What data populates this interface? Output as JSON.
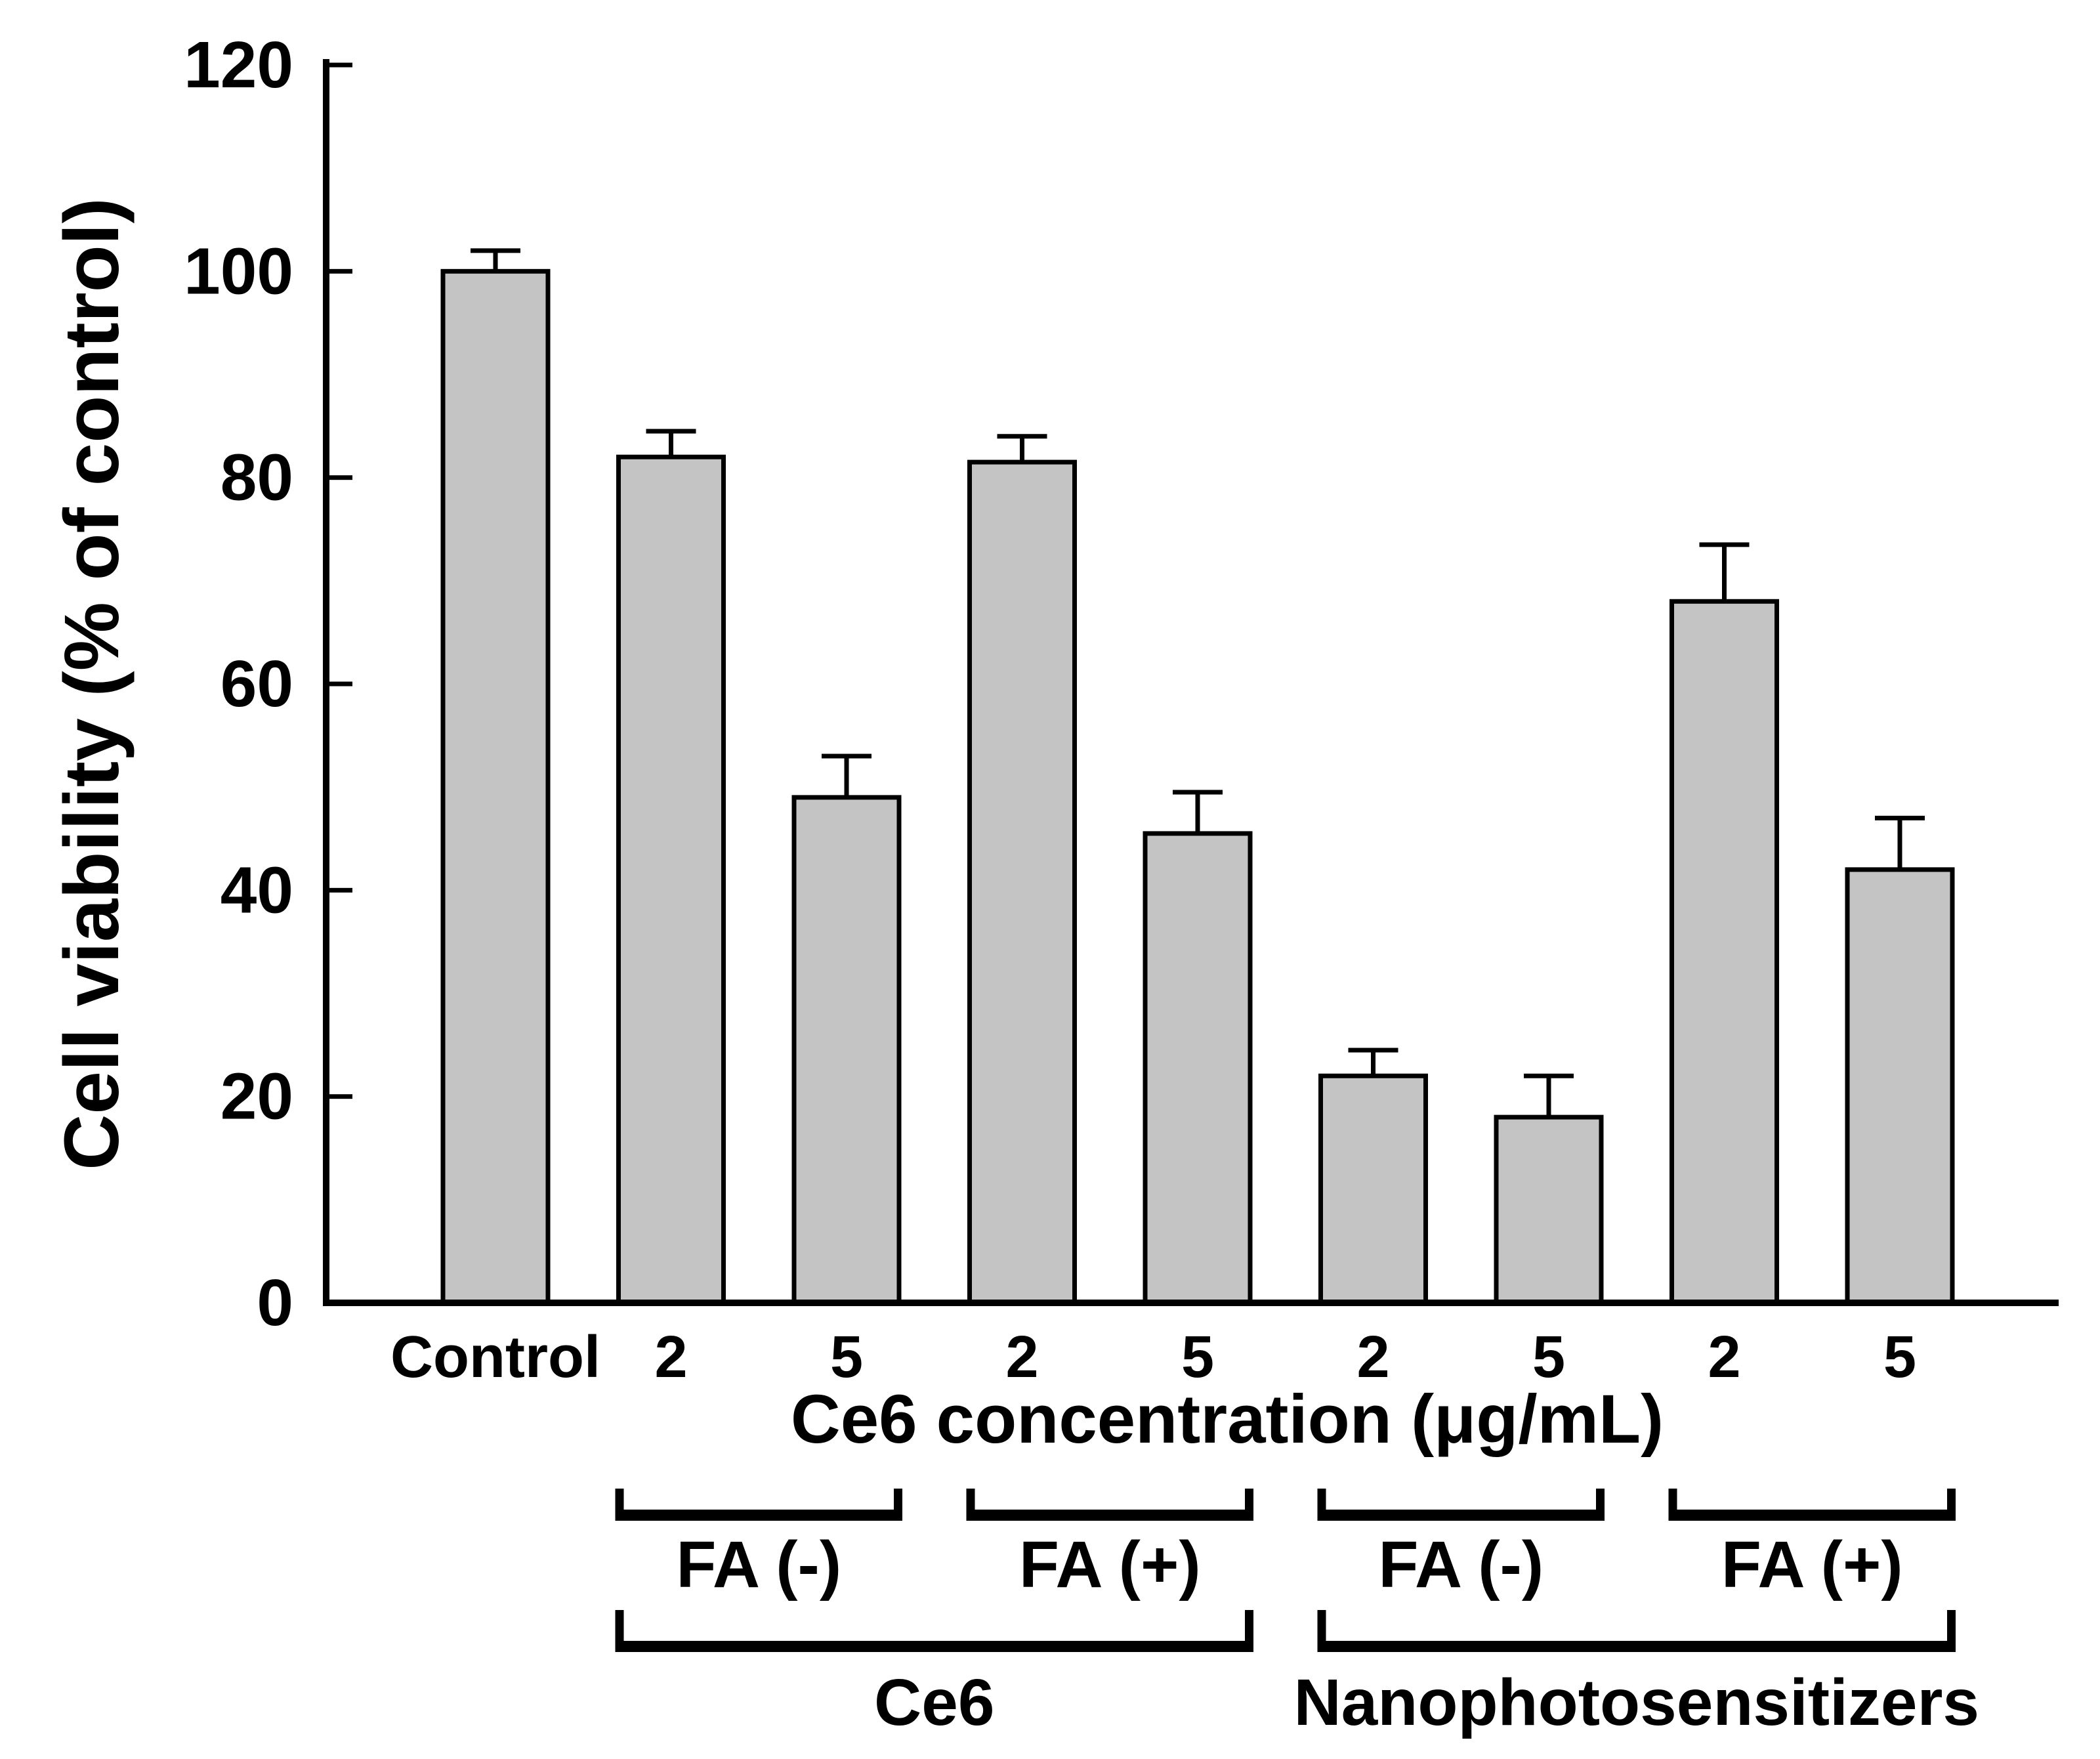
{
  "figure": {
    "background": "#ffffff",
    "bar_fill": "#c4c4c4",
    "line_color": "#000000"
  },
  "chart_data": {
    "type": "bar",
    "title": "",
    "ylabel": "Cell viability (% of control)",
    "xlabel": "Ce6 concentration (μg/mL)",
    "ylim": [
      0,
      120
    ],
    "yticks": [
      0,
      20,
      40,
      60,
      80,
      100,
      120
    ],
    "grid": false,
    "legend": null,
    "categories": [
      "Control",
      "2",
      "5",
      "2",
      "5",
      "2",
      "5",
      "2",
      "5"
    ],
    "values": [
      100,
      82,
      49,
      81.5,
      45.5,
      22,
      18,
      68,
      42
    ],
    "errors_plus": [
      2,
      2.5,
      4,
      2.5,
      4,
      2.5,
      4,
      5.5,
      5
    ],
    "bracket_rows": [
      {
        "brackets": [
          {
            "label": "FA (-)",
            "start_bar": 1,
            "end_bar": 2
          },
          {
            "label": "FA (+)",
            "start_bar": 3,
            "end_bar": 4
          },
          {
            "label": "FA (-)",
            "start_bar": 5,
            "end_bar": 6
          },
          {
            "label": "FA (+)",
            "start_bar": 7,
            "end_bar": 8
          }
        ]
      },
      {
        "brackets": [
          {
            "label": "Ce6",
            "start_bar": 1,
            "end_bar": 4
          },
          {
            "label": "Nanophotosensitizers",
            "start_bar": 5,
            "end_bar": 8
          }
        ]
      }
    ]
  }
}
